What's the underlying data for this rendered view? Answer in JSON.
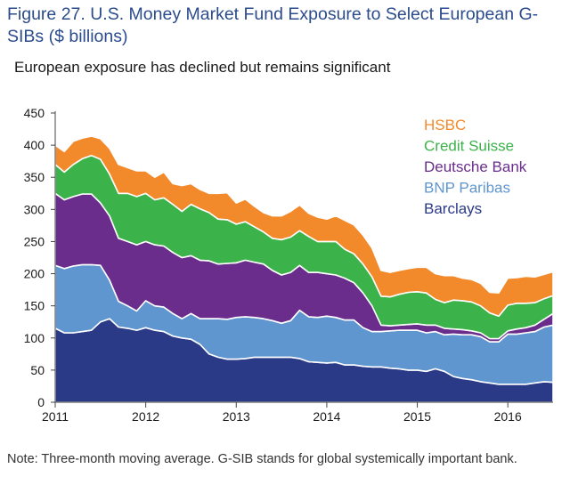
{
  "figure": {
    "title": "Figure 27. U.S. Money Market Fund Exposure to Select European G-SIBs ($ billions)",
    "subtitle": "European exposure has declined but remains significant",
    "note": "Note: Three-month moving average. G-SIB stands for global systemically important bank."
  },
  "chart_data": {
    "type": "area",
    "stacked": true,
    "title": "Figure 27. U.S. Money Market Fund Exposure to Select European G-SIBs ($ billions)",
    "subtitle": "European exposure has declined but remains significant",
    "xlabel": "",
    "ylabel": "",
    "xlim": [
      2011.0,
      2016.5
    ],
    "ylim": [
      0,
      450
    ],
    "y_ticks": [
      "0",
      "50",
      "100",
      "150",
      "200",
      "250",
      "300",
      "350",
      "400",
      "450"
    ],
    "x_ticks": [
      "2011",
      "2012",
      "2013",
      "2014",
      "2015",
      "2016"
    ],
    "legend_position": "top-right",
    "x": [
      2011.0,
      2011.1,
      2011.2,
      2011.3,
      2011.4,
      2011.5,
      2011.6,
      2011.7,
      2011.8,
      2011.9,
      2012.0,
      2012.1,
      2012.2,
      2012.3,
      2012.4,
      2012.5,
      2012.6,
      2012.7,
      2012.8,
      2012.9,
      2013.0,
      2013.1,
      2013.2,
      2013.3,
      2013.4,
      2013.5,
      2013.6,
      2013.7,
      2013.8,
      2013.9,
      2014.0,
      2014.1,
      2014.2,
      2014.3,
      2014.4,
      2014.5,
      2014.6,
      2014.7,
      2014.8,
      2014.9,
      2015.0,
      2015.1,
      2015.2,
      2015.3,
      2015.4,
      2015.5,
      2015.6,
      2015.7,
      2015.8,
      2015.9,
      2016.0,
      2016.1,
      2016.2,
      2016.3,
      2016.4,
      2016.5
    ],
    "series": [
      {
        "name": "Barclays",
        "color": "#2b3a87",
        "values": [
          115,
          108,
          108,
          110,
          112,
          125,
          130,
          117,
          115,
          112,
          116,
          112,
          110,
          103,
          100,
          98,
          90,
          75,
          70,
          67,
          67,
          68,
          70,
          70,
          70,
          70,
          70,
          68,
          63,
          62,
          61,
          62,
          58,
          58,
          56,
          55,
          55,
          53,
          52,
          50,
          50,
          48,
          52,
          48,
          40,
          37,
          35,
          32,
          30,
          28,
          28,
          28,
          28,
          30,
          32,
          31
        ]
      },
      {
        "name": "BNP Paribas",
        "color": "#6096cf",
        "values": [
          98,
          100,
          104,
          104,
          102,
          88,
          60,
          40,
          35,
          30,
          42,
          38,
          38,
          35,
          30,
          40,
          40,
          55,
          60,
          62,
          65,
          65,
          62,
          60,
          57,
          53,
          57,
          75,
          70,
          70,
          73,
          70,
          70,
          70,
          60,
          55,
          55,
          58,
          60,
          62,
          62,
          60,
          58,
          57,
          66,
          68,
          70,
          70,
          64,
          66,
          78,
          78,
          80,
          80,
          85,
          89
        ]
      },
      {
        "name": "Deutsche Bank",
        "color": "#6a2d8c",
        "values": [
          112,
          107,
          108,
          110,
          110,
          97,
          100,
          98,
          100,
          103,
          92,
          95,
          95,
          95,
          95,
          90,
          91,
          90,
          85,
          87,
          85,
          88,
          86,
          85,
          78,
          75,
          75,
          70,
          69,
          70,
          66,
          66,
          65,
          58,
          54,
          40,
          10,
          8,
          8,
          9,
          10,
          12,
          10,
          10,
          8,
          8,
          6,
          6,
          5,
          5,
          5,
          8,
          8,
          10,
          12,
          18
        ]
      },
      {
        "name": "Credit Suisse",
        "color": "#3cb24a",
        "values": [
          45,
          43,
          50,
          55,
          60,
          68,
          65,
          70,
          75,
          75,
          75,
          70,
          75,
          75,
          72,
          80,
          80,
          75,
          70,
          68,
          60,
          60,
          55,
          50,
          50,
          55,
          55,
          54,
          56,
          48,
          50,
          52,
          45,
          45,
          45,
          45,
          45,
          45,
          48,
          50,
          50,
          50,
          40,
          40,
          45,
          45,
          45,
          42,
          40,
          35,
          40,
          40,
          38,
          35,
          32,
          28
        ]
      },
      {
        "name": "HSBC",
        "color": "#f28a2c",
        "values": [
          30,
          32,
          36,
          32,
          30,
          32,
          40,
          45,
          40,
          40,
          35,
          35,
          40,
          32,
          40,
          32,
          30,
          30,
          40,
          42,
          33,
          35,
          32,
          30,
          35,
          37,
          40,
          40,
          36,
          38,
          35,
          40,
          45,
          45,
          45,
          45,
          40,
          38,
          37,
          37,
          38,
          40,
          40,
          42,
          38,
          35,
          35,
          35,
          32,
          36,
          42,
          40,
          42,
          40,
          38,
          37
        ]
      }
    ],
    "legend_order": [
      "HSBC",
      "Credit Suisse",
      "Deutsche Bank",
      "BNP Paribas",
      "Barclays"
    ]
  }
}
